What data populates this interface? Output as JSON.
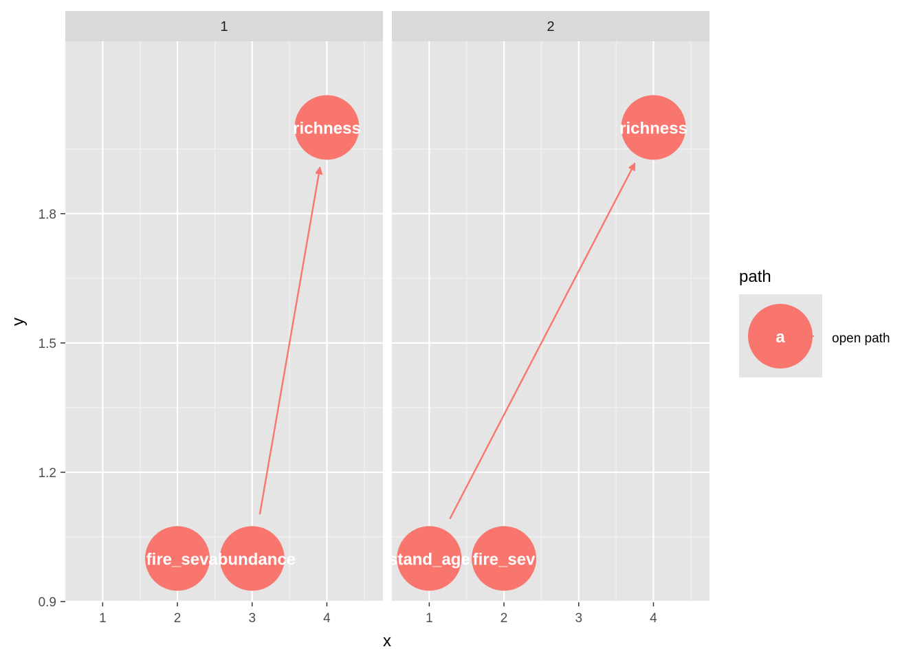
{
  "chart_data": {
    "type": "scatter",
    "description_kind": "faceted DAG path plot",
    "xlabel": "x",
    "ylabel": "y",
    "xlim": [
      0.5,
      4.75
    ],
    "ylim": [
      0.9,
      2.2
    ],
    "x_ticks": [
      "1",
      "2",
      "3",
      "4"
    ],
    "y_ticks": [
      "0.9",
      "1.2",
      "1.5",
      "1.8"
    ],
    "y_tick_values": [
      0.9,
      1.2,
      1.5,
      1.8
    ],
    "grid": true,
    "node_color": "#F8766D",
    "panel_background": "#E5E5E5",
    "strip_background": "#D9D9D9",
    "facets": [
      {
        "label": "1",
        "nodes": [
          {
            "name": "fire_sev",
            "x": 2,
            "y": 1.0
          },
          {
            "name": "abundance",
            "x": 3,
            "y": 1.0
          },
          {
            "name": "richness",
            "x": 4,
            "y": 2.0
          }
        ],
        "edges": [
          {
            "from": "abundance",
            "to": "richness"
          }
        ]
      },
      {
        "label": "2",
        "nodes": [
          {
            "name": "stand_age",
            "x": 1,
            "y": 1.0
          },
          {
            "name": "fire_sev",
            "x": 2,
            "y": 1.0
          },
          {
            "name": "richness",
            "x": 4,
            "y": 2.0
          }
        ],
        "edges": [
          {
            "from": "stand_age",
            "to": "richness"
          }
        ]
      }
    ],
    "legend": {
      "title": "path",
      "key_label": "a",
      "entries": [
        "open path"
      ],
      "placement": "right"
    }
  }
}
